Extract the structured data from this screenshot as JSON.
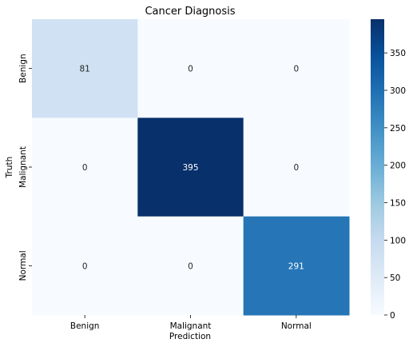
{
  "chart_data": {
    "type": "heatmap",
    "title": "Cancer Diagnosis",
    "xlabel": "Prediction",
    "ylabel": "Truth",
    "x_categories": [
      "Benign",
      "Malignant",
      "Normal"
    ],
    "y_categories": [
      "Benign",
      "Malignant",
      "Normal"
    ],
    "matrix": [
      [
        81,
        0,
        0
      ],
      [
        0,
        395,
        0
      ],
      [
        0,
        0,
        291
      ]
    ],
    "colorbar": {
      "min": 0,
      "max": 395,
      "ticks": [
        0,
        50,
        100,
        150,
        200,
        250,
        300,
        350
      ],
      "colormap": "Blues",
      "colors": [
        "#f7fbff",
        "#deebf7",
        "#c6dbef",
        "#9ecae1",
        "#6baed6",
        "#4292c6",
        "#2171b5",
        "#08519c",
        "#08306b"
      ]
    }
  }
}
